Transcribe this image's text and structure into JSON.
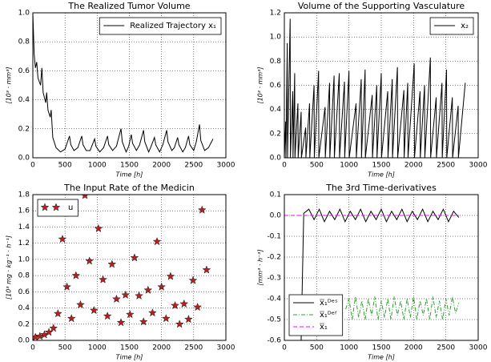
{
  "chart_data": [
    {
      "type": "line",
      "title": "The Realized Tumor Volume",
      "xlabel": "Time [h]",
      "ylabel": "[10³ · mm³]",
      "xlim": [
        0,
        3000
      ],
      "xticks": [
        0,
        500,
        1000,
        1500,
        2000,
        2500,
        3000
      ],
      "ylim": [
        0,
        1
      ],
      "yticks": [
        {
          "value": 0,
          "label": "0.0"
        },
        0.2,
        0.4,
        0.6,
        0.8,
        {
          "value": 1,
          "label": "1.0"
        }
      ],
      "grid": true,
      "legend": "upper right",
      "series": [
        {
          "name": "Realized Trajectory x₁",
          "color": "#000000",
          "linestyle": "solid",
          "x": [
            0,
            20,
            40,
            60,
            80,
            120,
            140,
            160,
            200,
            215,
            235,
            270,
            285,
            310,
            360,
            430,
            500,
            570,
            590,
            640,
            700,
            760,
            780,
            830,
            890,
            960,
            980,
            1040,
            1100,
            1160,
            1180,
            1240,
            1300,
            1370,
            1390,
            1450,
            1490,
            1530,
            1550,
            1610,
            1660,
            1720,
            1740,
            1800,
            1830,
            1890,
            1910,
            1970,
            2020,
            2080,
            2100,
            2160,
            2200,
            2250,
            2270,
            2330,
            2370,
            2420,
            2440,
            2500,
            2540,
            2590,
            2610,
            2670,
            2730,
            2800
          ],
          "values": [
            1.0,
            0.72,
            0.62,
            0.66,
            0.55,
            0.5,
            0.62,
            0.45,
            0.38,
            0.45,
            0.33,
            0.28,
            0.33,
            0.14,
            0.07,
            0.04,
            0.06,
            0.15,
            0.09,
            0.05,
            0.07,
            0.15,
            0.09,
            0.05,
            0.05,
            0.13,
            0.08,
            0.04,
            0.07,
            0.15,
            0.09,
            0.05,
            0.08,
            0.2,
            0.11,
            0.04,
            0.08,
            0.16,
            0.1,
            0.05,
            0.09,
            0.19,
            0.11,
            0.04,
            0.07,
            0.14,
            0.09,
            0.04,
            0.09,
            0.19,
            0.11,
            0.05,
            0.07,
            0.14,
            0.09,
            0.04,
            0.07,
            0.15,
            0.09,
            0.05,
            0.11,
            0.23,
            0.12,
            0.05,
            0.07,
            0.13
          ]
        }
      ]
    },
    {
      "type": "line",
      "title": "Volume of the Supporting Vasculature",
      "xlabel": "Time [h]",
      "ylabel": "[10³ · mm³]",
      "xlim": [
        0,
        3000
      ],
      "xticks": [
        0,
        500,
        1000,
        1500,
        2000,
        2500,
        3000
      ],
      "ylim": [
        0,
        1.2
      ],
      "yticks": [
        {
          "value": 0,
          "label": "0.0"
        },
        0.2,
        0.4,
        0.6,
        0.8,
        {
          "value": 1,
          "label": "1.0"
        },
        1.2
      ],
      "grid": true,
      "legend": "upper right",
      "series": [
        {
          "name": "x₂",
          "color": "#000000",
          "linestyle": "solid",
          "x": [
            0,
            20,
            24,
            45,
            49,
            90,
            94,
            130,
            134,
            160,
            164,
            210,
            214,
            260,
            264,
            330,
            334,
            390,
            394,
            460,
            464,
            530,
            534,
            630,
            634,
            700,
            704,
            770,
            774,
            850,
            854,
            930,
            934,
            1000,
            1004,
            1110,
            1114,
            1190,
            1194,
            1250,
            1254,
            1360,
            1364,
            1430,
            1434,
            1500,
            1504,
            1600,
            1604,
            1670,
            1674,
            1750,
            1754,
            1850,
            1854,
            1910,
            1914,
            2010,
            2014,
            2100,
            2104,
            2170,
            2174,
            2260,
            2264,
            2350,
            2354,
            2440,
            2444,
            2510,
            2514,
            2600,
            2604,
            2690,
            2694,
            2800
          ],
          "values": [
            0,
            0.3,
            0,
            0.95,
            0,
            1.15,
            0,
            0.55,
            0,
            0.7,
            0,
            0.45,
            0,
            0.38,
            0,
            0.25,
            0,
            0.45,
            0,
            0.6,
            0,
            0.72,
            0,
            0.42,
            0,
            0.62,
            0,
            0.68,
            0,
            0.7,
            0,
            0.63,
            0,
            0.72,
            0,
            0.45,
            0,
            0.65,
            0,
            0.73,
            0,
            0.52,
            0,
            0.6,
            0,
            0.7,
            0,
            0.55,
            0,
            0.65,
            0,
            0.75,
            0,
            0.56,
            0,
            0.62,
            0,
            0.78,
            0,
            0.55,
            0,
            0.6,
            0,
            0.83,
            0,
            0.5,
            0,
            0.62,
            0,
            0.73,
            0,
            0.5,
            0,
            0.43,
            0,
            0.62
          ]
        }
      ]
    },
    {
      "type": "scatter",
      "title": "The Input Rate of the Medicin",
      "xlabel": "Time [h]",
      "ylabel": "[10³ mg · kg⁻¹ · h⁻¹]",
      "xlim": [
        0,
        3000
      ],
      "xticks": [
        0,
        500,
        1000,
        1500,
        2000,
        2500,
        3000
      ],
      "ylim": [
        0,
        1.8
      ],
      "yticks": [
        {
          "value": 0,
          "label": "0.0"
        },
        0.2,
        0.4,
        0.6,
        0.8,
        {
          "value": 1,
          "label": "1.0"
        },
        1.2,
        1.4,
        1.6,
        1.8
      ],
      "grid": true,
      "legend": "upper left",
      "series": [
        {
          "name": "u",
          "color": "#b22222",
          "x": [
            40,
            110,
            180,
            250,
            320,
            390,
            460,
            530,
            600,
            670,
            740,
            810,
            880,
            950,
            1020,
            1090,
            1160,
            1230,
            1300,
            1370,
            1440,
            1510,
            1580,
            1650,
            1720,
            1790,
            1860,
            1930,
            2000,
            2070,
            2140,
            2210,
            2280,
            2350,
            2420,
            2490,
            2560,
            2630,
            2700
          ],
          "values": [
            0.04,
            0.05,
            0.07,
            0.1,
            0.15,
            0.33,
            1.25,
            0.66,
            0.27,
            0.8,
            0.44,
            1.79,
            0.98,
            0.37,
            1.38,
            0.75,
            0.3,
            0.94,
            0.51,
            0.22,
            0.56,
            0.32,
            1.02,
            0.55,
            0.23,
            0.62,
            0.34,
            1.22,
            0.66,
            0.27,
            0.79,
            0.43,
            0.2,
            0.45,
            0.26,
            0.74,
            0.41,
            1.61,
            0.87
          ]
        }
      ]
    },
    {
      "type": "line",
      "title": "The 3rd Time-derivatives",
      "xlabel": "Time [h]",
      "ylabel": "[mm³ · h⁻³]",
      "xlim": [
        0,
        3000
      ],
      "xticks": [
        0,
        500,
        1000,
        1500,
        2000,
        2500,
        3000
      ],
      "ylim": [
        -0.6,
        0.1
      ],
      "yticks": [
        -0.6,
        -0.5,
        -0.4,
        -0.3,
        -0.2,
        -0.1,
        {
          "value": 0,
          "label": "0.0"
        },
        0.1
      ],
      "grid": true,
      "legend": "lower left",
      "series": [
        {
          "name": "x⃛₁ᴰᵉˢ",
          "color": "#000000",
          "linestyle": "solid",
          "x": [
            0,
            260,
            300,
            380,
            460,
            540,
            620,
            700,
            780,
            860,
            940,
            1020,
            1100,
            1180,
            1260,
            1340,
            1420,
            1500,
            1580,
            1660,
            1740,
            1820,
            1900,
            1980,
            2060,
            2140,
            2220,
            2300,
            2380,
            2460,
            2540,
            2620,
            2700
          ],
          "values": [
            -0.6,
            -0.6,
            0.01,
            0.03,
            -0.02,
            0.03,
            -0.03,
            0.02,
            -0.02,
            0.03,
            -0.03,
            0.02,
            -0.02,
            0.03,
            -0.03,
            0.02,
            -0.02,
            0.03,
            -0.03,
            0.02,
            -0.02,
            0.03,
            -0.03,
            0.02,
            -0.02,
            0.03,
            -0.03,
            0.02,
            -0.02,
            0.03,
            -0.03,
            0.02,
            -0.01
          ]
        },
        {
          "name": "x⃛₁ᴰᵉᶠ",
          "color": "#2ca02c",
          "linestyle": "dashdot",
          "x": [
            950,
            1000,
            1050,
            1100,
            1150,
            1200,
            1250,
            1300,
            1350,
            1400,
            1450,
            1500,
            1550,
            1600,
            1650,
            1700,
            1750,
            1800,
            1850,
            1900,
            1950,
            2000,
            2050,
            2100,
            2150,
            2200,
            2250,
            2300,
            2350,
            2400,
            2450,
            2500,
            2550,
            2600,
            2650,
            2700
          ],
          "values": [
            -0.45,
            -0.4,
            -0.5,
            -0.39,
            -0.49,
            -0.41,
            -0.5,
            -0.4,
            -0.48,
            -0.39,
            -0.5,
            -0.41,
            -0.49,
            -0.4,
            -0.5,
            -0.39,
            -0.48,
            -0.41,
            -0.5,
            -0.4,
            -0.49,
            -0.39,
            -0.5,
            -0.41,
            -0.48,
            -0.4,
            -0.5,
            -0.39,
            -0.49,
            -0.41,
            -0.5,
            -0.4,
            -0.48,
            -0.39,
            -0.47,
            -0.42
          ]
        },
        {
          "name": "x⃛₁",
          "color": "#ff00ff",
          "linestyle": "dashed",
          "x": [
            0,
            2700
          ],
          "values": [
            0,
            0
          ]
        }
      ]
    }
  ]
}
